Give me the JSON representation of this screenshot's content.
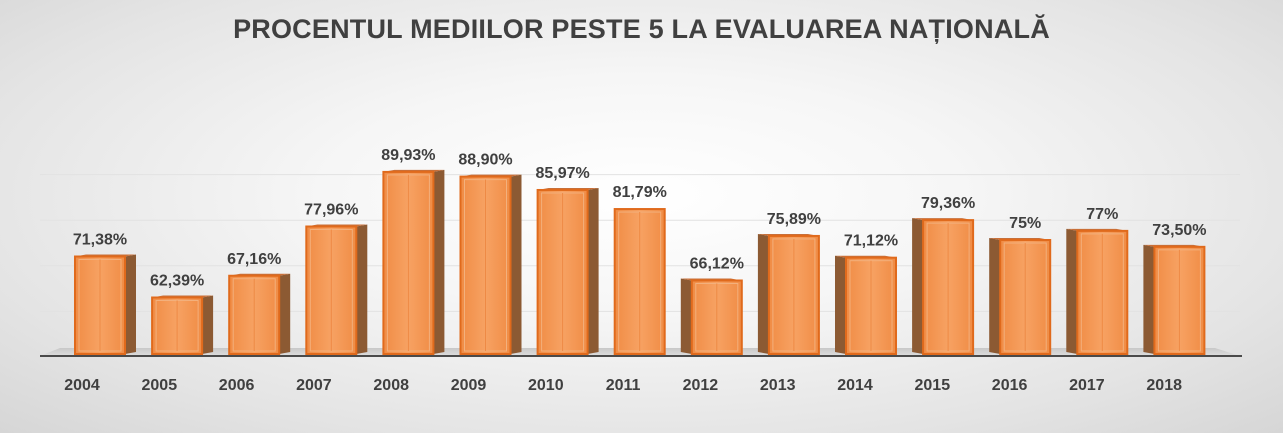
{
  "chart_data": {
    "type": "bar",
    "title": "PROCENTUL MEDIILOR PESTE 5 LA EVALUAREA NAȚIONALĂ",
    "categories": [
      "2004",
      "2005",
      "2006",
      "2007",
      "2008",
      "2009",
      "2010",
      "2011",
      "2012",
      "2013",
      "2014",
      "2015",
      "2016",
      "2017",
      "2018"
    ],
    "values": [
      71.38,
      62.39,
      67.16,
      77.96,
      89.93,
      88.9,
      85.97,
      81.79,
      66.12,
      75.89,
      71.12,
      79.36,
      75,
      77,
      73.5
    ],
    "data_labels": [
      "71,38%",
      "62,39%",
      "67,16%",
      "77,96%",
      "89,93%",
      "88,90%",
      "85,97%",
      "81,79%",
      "66,12%",
      "75,89%",
      "71,12%",
      "79,36%",
      "75%",
      "77%",
      "73,50%"
    ],
    "xlabel": "",
    "ylabel": "",
    "ylim": [
      50,
      100
    ],
    "grid": true,
    "legend": "none",
    "bar_color": "#F59A57",
    "bar_edge_color": "#E06A1C",
    "side_color": "#8C5A33"
  }
}
